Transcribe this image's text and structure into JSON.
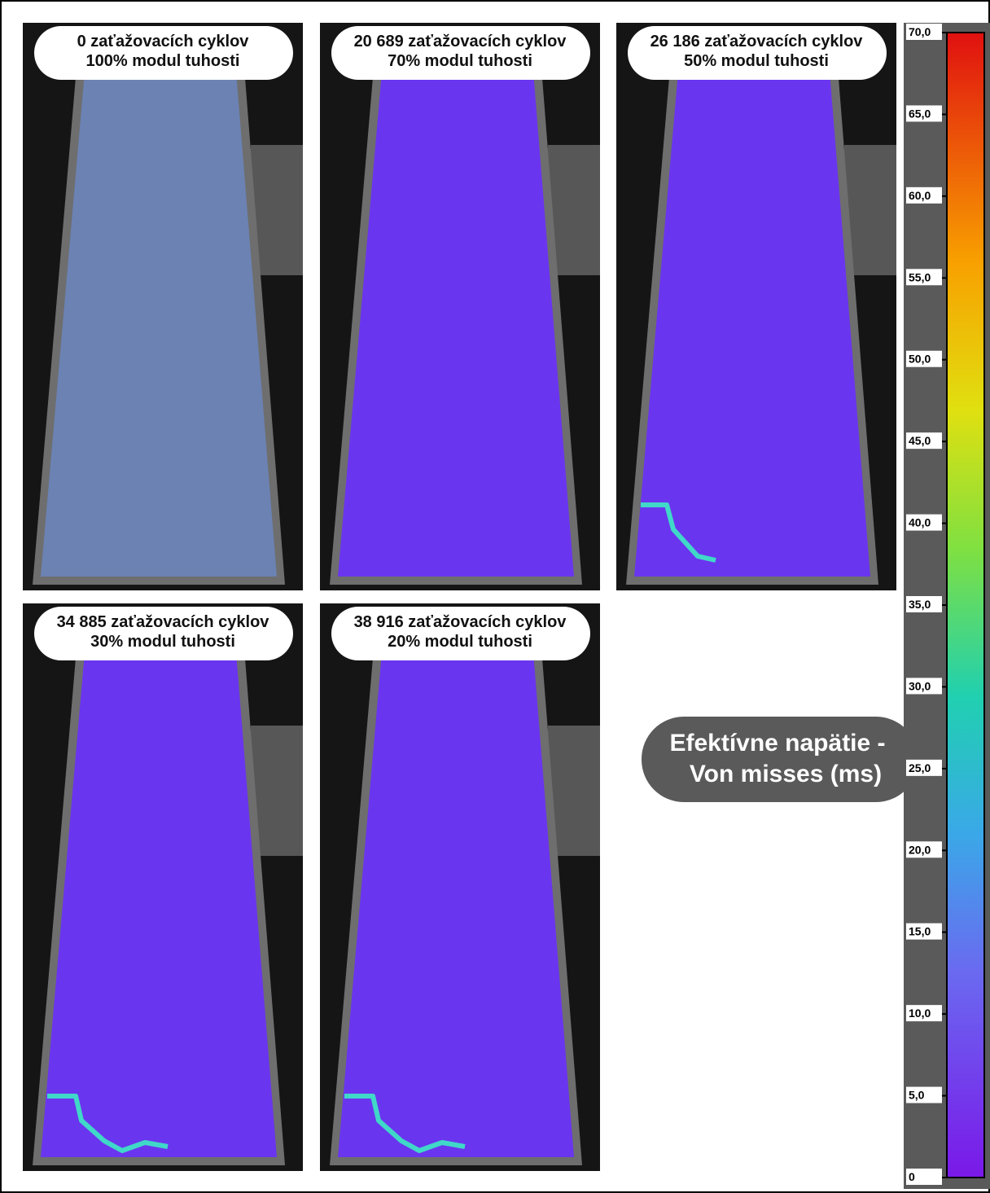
{
  "panels": [
    {
      "line1": "0 zaťažovacích cyklov",
      "line2": "100% modul tuhosti"
    },
    {
      "line1": "20 689 zaťažovacích cyklov",
      "line2": "70% modul tuhosti"
    },
    {
      "line1": "26 186 zaťažovacích cyklov",
      "line2": "50% modul tuhosti"
    },
    {
      "line1": "34 885 zaťažovacích cyklov",
      "line2": "30% modul tuhosti"
    },
    {
      "line1": "38 916 zaťažovacích cyklov",
      "line2": "20% modul tuhosti"
    }
  ],
  "colorbar": {
    "title_line1": "Efektívne napätie -",
    "title_line2": "Von misses (ms)",
    "lim": [
      0,
      70
    ],
    "ticks": [
      0,
      {
        "value": 5,
        "label": "5,0"
      },
      {
        "value": 10,
        "label": "10,0"
      },
      {
        "value": 15,
        "label": "15,0"
      },
      {
        "value": 20,
        "label": "20,0"
      },
      {
        "value": 25,
        "label": "25,0"
      },
      {
        "value": 30,
        "label": "30,0"
      },
      {
        "value": 35,
        "label": "35,0"
      },
      {
        "value": 40,
        "label": "40,0"
      },
      {
        "value": 45,
        "label": "45,0"
      },
      {
        "value": 50,
        "label": "50,0"
      },
      {
        "value": 55,
        "label": "55,0"
      },
      {
        "value": 60,
        "label": "60,0"
      },
      {
        "value": 65,
        "label": "65,0"
      },
      {
        "value": 70,
        "label": "70,0"
      }
    ]
  }
}
